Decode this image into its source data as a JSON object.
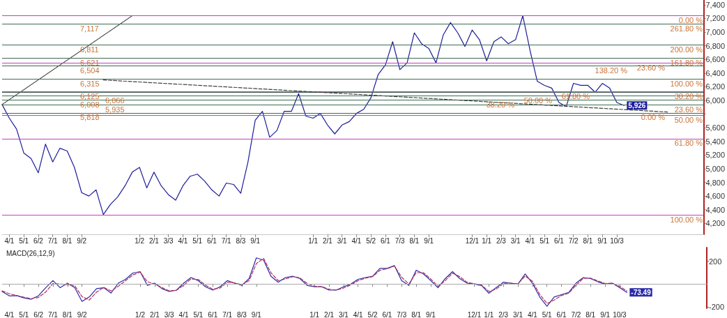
{
  "chart_data": [
    {
      "type": "line",
      "categories": [
        null,
        "4/1",
        null,
        "5/1",
        null,
        "6/2",
        null,
        "7/1",
        null,
        "8/1",
        null,
        "9/2",
        null,
        null,
        null,
        null,
        null,
        null,
        null,
        "1/2",
        null,
        "2/1",
        null,
        "3/3",
        null,
        "4/1",
        null,
        "5/1",
        null,
        "6/1",
        null,
        "7/1",
        null,
        "8/3",
        null,
        "9/1",
        null,
        null,
        null,
        null,
        null,
        null,
        null,
        "1/1",
        null,
        "2/1",
        null,
        "3/1",
        null,
        "4/1",
        null,
        "5/2",
        null,
        "6/1",
        null,
        "7/3",
        null,
        "8/1",
        null,
        "9/1",
        null,
        null,
        null,
        null,
        null,
        "12/1",
        null,
        "1/1",
        null,
        "2/3",
        null,
        "3/1",
        null,
        "4/1",
        null,
        "5/1",
        null,
        "6/1",
        null,
        "7/2",
        null,
        "8/1",
        null,
        "9/1",
        null,
        "10/3",
        null,
        null,
        null,
        null,
        null,
        null,
        null,
        null,
        null,
        null,
        null,
        null
      ],
      "series": [
        {
          "color": "#1c1c9c",
          "values": [
            5940,
            5740,
            5580,
            5230,
            5150,
            4940,
            5360,
            5100,
            5300,
            5260,
            5020,
            4650,
            4600,
            4690,
            4330,
            4480,
            4590,
            4750,
            4950,
            5020,
            4720,
            4950,
            4750,
            4620,
            4540,
            4750,
            4890,
            4920,
            4820,
            4690,
            4600,
            4790,
            4770,
            4640,
            5100,
            5710,
            5840,
            5460,
            5560,
            5840,
            5840,
            6100,
            5770,
            5740,
            5810,
            5640,
            5510,
            5640,
            5690,
            5810,
            5870,
            6040,
            6380,
            6520,
            6860,
            6450,
            6550,
            6990,
            6830,
            6760,
            6550,
            6960,
            7140,
            6990,
            6790,
            7030,
            6890,
            6580,
            6860,
            6930,
            6830,
            6890,
            7240,
            6730,
            6280,
            6220,
            6180,
            5970,
            5910,
            6250,
            6220,
            6220,
            6120,
            6250,
            6180,
            5970,
            5926,
            null,
            null,
            null,
            null,
            null,
            null,
            null,
            null,
            null,
            null,
            null
          ],
          "value_labels": [
            null,
            null,
            null,
            null,
            null,
            null,
            null,
            null,
            null,
            null,
            null,
            null,
            null,
            null,
            null,
            null,
            null,
            null,
            null,
            null,
            null,
            null,
            null,
            null,
            null,
            null,
            null,
            null,
            null,
            null,
            null,
            null,
            null,
            null,
            null,
            null,
            null,
            null,
            null,
            null,
            null,
            null,
            null,
            null,
            null,
            null,
            null,
            null,
            null,
            null,
            null,
            null,
            null,
            null,
            null,
            null,
            null,
            null,
            null,
            null,
            null,
            null,
            null,
            null,
            null,
            null,
            null,
            null,
            null,
            null,
            null,
            null,
            null,
            null,
            null,
            null,
            null,
            null,
            null,
            null,
            null,
            null,
            null,
            null,
            null,
            null,
            "5,926",
            null,
            null,
            null,
            null,
            null,
            null,
            null,
            null,
            null,
            null,
            null
          ]
        },
        {
          "type": "line",
          "color": "#404040",
          "line_style": "dotted",
          "values": [
            5940,
            null,
            null,
            null,
            null,
            null,
            null,
            null,
            null,
            null,
            null,
            null,
            null,
            null,
            null,
            null,
            null,
            null,
            7240,
            null,
            null,
            null,
            null,
            null,
            null,
            null,
            null,
            null,
            null,
            null,
            null,
            null,
            null,
            null,
            null,
            null,
            null,
            null,
            null,
            null,
            null,
            null,
            null,
            null,
            null,
            null,
            null,
            null,
            null,
            null,
            null,
            null,
            null,
            null,
            null,
            null,
            null,
            null,
            null,
            null,
            null,
            null,
            null,
            null,
            null,
            null,
            null,
            null,
            null,
            null,
            null,
            null,
            null,
            null,
            null,
            null,
            null,
            null,
            null,
            null,
            null,
            null,
            null,
            null,
            null,
            null,
            null,
            null,
            null,
            null,
            null,
            null,
            null,
            null,
            null,
            null,
            null,
            null
          ]
        },
        {
          "type": "line",
          "color": "#404040",
          "line_style": "dashed",
          "values": [
            null,
            null,
            null,
            null,
            null,
            null,
            null,
            null,
            null,
            null,
            null,
            null,
            null,
            null,
            6300,
            null,
            null,
            null,
            null,
            null,
            null,
            null,
            null,
            null,
            null,
            null,
            null,
            null,
            null,
            null,
            null,
            null,
            null,
            null,
            null,
            null,
            null,
            null,
            null,
            null,
            null,
            null,
            null,
            null,
            null,
            null,
            null,
            null,
            null,
            null,
            null,
            null,
            null,
            null,
            null,
            null,
            null,
            null,
            null,
            null,
            null,
            null,
            null,
            null,
            null,
            null,
            null,
            null,
            null,
            null,
            null,
            null,
            null,
            null,
            null,
            null,
            null,
            null,
            null,
            null,
            null,
            null,
            null,
            null,
            null,
            null,
            null,
            null,
            null,
            null,
            null,
            null,
            5830,
            null,
            null,
            null,
            null,
            null
          ]
        }
      ],
      "ylim": [
        4040,
        7470
      ],
      "yticks": [
        {
          "value": 4200,
          "label": "4,200"
        },
        {
          "value": 4400,
          "label": "4,400"
        },
        {
          "value": 4600,
          "label": "4,600"
        },
        {
          "value": 4800,
          "label": "4,800"
        },
        {
          "value": 5000,
          "label": "5,000"
        },
        {
          "value": 5200,
          "label": "5,200"
        },
        {
          "value": 5400,
          "label": "5,400"
        },
        {
          "value": 5600,
          "label": "5,600"
        },
        {
          "value": 5800,
          "label": null
        },
        {
          "value": 6000,
          "label": "6,000"
        },
        {
          "value": 6200,
          "label": "6,200"
        },
        {
          "value": 6400,
          "label": "6,400"
        },
        {
          "value": 6600,
          "label": "6,600"
        },
        {
          "value": 6800,
          "label": "6,800"
        },
        {
          "value": 7000,
          "label": "7,000"
        },
        {
          "value": 7200,
          "label": "7,200"
        },
        {
          "value": 7400,
          "label": "7,400"
        }
      ],
      "ref_lines": [
        {
          "axis": "y",
          "value": 7240,
          "color": "#c040c0"
        },
        {
          "axis": "y",
          "value": 6550,
          "color": "#c040c0"
        },
        {
          "axis": "y",
          "value": 6130,
          "color": "#c040c0"
        },
        {
          "axis": "y",
          "value": 5780,
          "color": "#c040c0"
        },
        {
          "axis": "y",
          "value": 5440,
          "color": "#c040c0"
        },
        {
          "axis": "y",
          "value": 4320,
          "color": "#c040c0"
        },
        {
          "axis": "y",
          "value": 7117,
          "label": "7,117",
          "color": "#3d6b52"
        },
        {
          "axis": "y",
          "value": 6811,
          "label": "6,811",
          "color": "#3d6b52"
        },
        {
          "axis": "y",
          "value": 6621,
          "label": "6,621",
          "color": "#3d6b52"
        },
        {
          "axis": "y",
          "value": 6504,
          "label": "6,504",
          "color": "#3d6b52"
        },
        {
          "axis": "y",
          "value": 6315,
          "label": "6,315",
          "color": "#3d6b52"
        },
        {
          "axis": "y",
          "value": 6125,
          "label": "6,125",
          "color": "#3d6b52"
        },
        {
          "axis": "y",
          "value": 6066,
          "label": "6,066",
          "color": "#3d6b52"
        },
        {
          "axis": "y",
          "value": 6008,
          "label": "6,008",
          "color": "#3d6b52"
        },
        {
          "axis": "y",
          "value": 5935,
          "label": "5,935",
          "color": "#3d6b52"
        },
        {
          "axis": "y",
          "value": 5818,
          "label": "5,818",
          "color": "#3d6b52"
        }
      ],
      "annotations": [
        {
          "text": "0.00 %",
          "y": 7240
        },
        {
          "text": "23.60 %",
          "y": 6550
        },
        {
          "text": "38.20 %",
          "y": 6130
        },
        {
          "text": "50.00 %",
          "y": 5780
        },
        {
          "text": "61.80 %",
          "y": 5440
        },
        {
          "text": "100.00 %",
          "y": 4320
        },
        {
          "text": "261.80 %",
          "y": 7117
        },
        {
          "text": "200.00 %",
          "y": 6811
        },
        {
          "text": "161.80 %",
          "y": 6621
        },
        {
          "text": "138.20 %",
          "y": 6504
        },
        {
          "text": "100.00 %",
          "y": 6315
        },
        {
          "text": "61.80 %",
          "y": 6125
        },
        {
          "text": "50.00 %",
          "y": 6066
        },
        {
          "text": "38.20 %",
          "y": 6008
        },
        {
          "text": "23.60 %",
          "y": 5935
        },
        {
          "text": "0.00 %",
          "y": 5818
        }
      ]
    },
    {
      "type": "line",
      "title": "MACD(26,12,9)",
      "categories": [
        null,
        "4/1",
        null,
        "5/1",
        null,
        "6/2",
        null,
        "7/1",
        null,
        "8/1",
        null,
        "9/2",
        null,
        null,
        null,
        null,
        null,
        null,
        null,
        "1/2",
        null,
        "2/1",
        null,
        "3/3",
        null,
        "4/1",
        null,
        "5/1",
        null,
        "6/1",
        null,
        "7/1",
        null,
        "8/3",
        null,
        "9/1",
        null,
        null,
        null,
        null,
        null,
        null,
        null,
        "1/1",
        null,
        "2/1",
        null,
        "3/1",
        null,
        "4/1",
        null,
        "5/2",
        null,
        "6/1",
        null,
        "7/3",
        null,
        "8/1",
        null,
        "9/1",
        null,
        null,
        null,
        null,
        null,
        "12/1",
        null,
        "1/1",
        null,
        "2/3",
        null,
        "3/1",
        null,
        "4/1",
        null,
        "5/1",
        null,
        "6/1",
        null,
        "7/2",
        null,
        "8/1",
        null,
        "9/1",
        null,
        "10/3",
        null,
        null,
        null,
        null,
        null,
        null,
        null,
        null,
        null,
        null,
        null,
        null
      ],
      "series": [
        {
          "color": "#2a2aa8",
          "values": [
            -65,
            -104,
            -101,
            -121,
            -133,
            -103,
            -32,
            30,
            -32,
            8,
            -32,
            -152,
            -113,
            -40,
            -32,
            -79,
            8,
            42,
            97,
            109,
            -12,
            8,
            -40,
            -65,
            -53,
            8,
            57,
            30,
            -24,
            -53,
            -24,
            30,
            8,
            -12,
            48,
            230,
            210,
            69,
            16,
            57,
            69,
            48,
            -12,
            -24,
            -24,
            -53,
            -53,
            -24,
            0,
            42,
            57,
            69,
            137,
            137,
            162,
            30,
            -12,
            121,
            89,
            30,
            -32,
            48,
            109,
            48,
            8,
            0,
            -12,
            -81,
            -32,
            16,
            8,
            0,
            89,
            8,
            -113,
            -194,
            -113,
            -93,
            -73,
            8,
            57,
            48,
            20,
            0,
            8,
            -32,
            -73.49,
            null,
            null,
            null,
            null,
            null,
            null,
            null,
            null,
            null,
            null,
            null
          ],
          "value_labels": [
            null,
            null,
            null,
            null,
            null,
            null,
            null,
            null,
            null,
            null,
            null,
            null,
            null,
            null,
            null,
            null,
            null,
            null,
            null,
            null,
            null,
            null,
            null,
            null,
            null,
            null,
            null,
            null,
            null,
            null,
            null,
            null,
            null,
            null,
            null,
            null,
            null,
            null,
            null,
            null,
            null,
            null,
            null,
            null,
            null,
            null,
            null,
            null,
            null,
            null,
            null,
            null,
            null,
            null,
            null,
            null,
            null,
            null,
            null,
            null,
            null,
            null,
            null,
            null,
            null,
            null,
            null,
            null,
            null,
            null,
            null,
            null,
            null,
            null,
            null,
            null,
            null,
            null,
            null,
            null,
            null,
            null,
            null,
            null,
            null,
            null,
            "-73.49",
            null,
            null,
            null,
            null,
            null,
            null,
            null,
            null,
            null,
            null,
            null
          ]
        },
        {
          "color": "#b03060",
          "line_style": "dashed",
          "values": [
            -60,
            -85,
            -100,
            -115,
            -128,
            -118,
            -70,
            5,
            0,
            -5,
            -15,
            -110,
            -140,
            -70,
            -30,
            -60,
            -20,
            30,
            80,
            105,
            20,
            0,
            -30,
            -60,
            -55,
            -10,
            45,
            40,
            -10,
            -45,
            -35,
            15,
            10,
            -5,
            30,
            180,
            225,
            100,
            30,
            45,
            65,
            55,
            5,
            -20,
            -22,
            -45,
            -52,
            -35,
            -8,
            30,
            52,
            65,
            120,
            135,
            158,
            60,
            0,
            100,
            100,
            45,
            -20,
            30,
            95,
            65,
            15,
            3,
            -8,
            -65,
            -45,
            5,
            8,
            2,
            70,
            25,
            -90,
            -170,
            -140,
            -100,
            -80,
            -10,
            50,
            52,
            28,
            5,
            8,
            -20,
            -60,
            null,
            null,
            null,
            null,
            null,
            null,
            null,
            null,
            null,
            null,
            null
          ]
        }
      ],
      "ylim": [
        -212,
        320
      ],
      "yticks": [
        -200,
        200
      ],
      "ref_lines": [
        {
          "axis": "y",
          "value": 0,
          "color": "#a8a8a8"
        }
      ]
    }
  ]
}
